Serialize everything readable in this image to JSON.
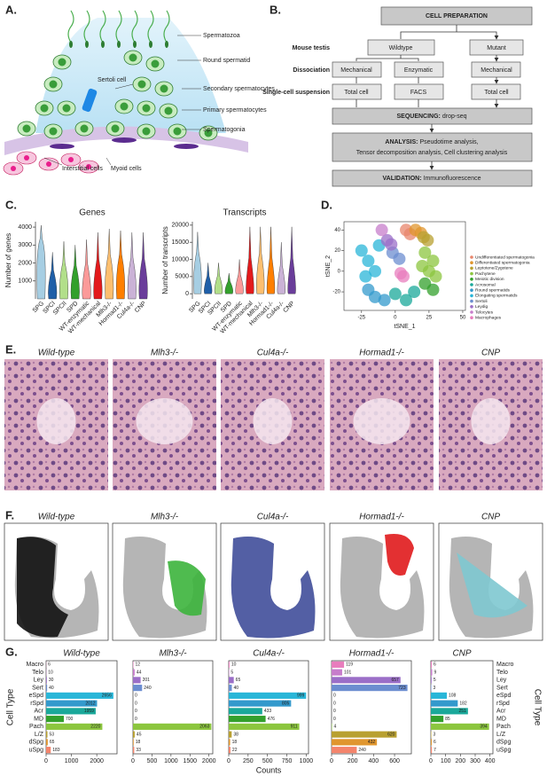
{
  "panel_a": {
    "letter": "A.",
    "labels": [
      "Spermatozoa",
      "Round spermatid",
      "Sertoli cell",
      "Secondary spermatocytes",
      "Primary spermatocytes",
      "Spermatogonia",
      "Interstitial cells",
      "Myoid cells"
    ]
  },
  "panel_b": {
    "letter": "B.",
    "title": "CELL PREPARATION",
    "row_labels": [
      "Mouse testis",
      "Dissociation",
      "Single-cell suspension"
    ],
    "boxes": [
      "Wildtype",
      "Mutant",
      "Mechanical",
      "Enzymatic",
      "Mechanical",
      "Total cell",
      "FACS",
      "Total cell"
    ],
    "sequencing": {
      "bold": "SEQUENCING:",
      "text": "drop-seq"
    },
    "analysis": {
      "bold": "ANALYSIS:",
      "lines": [
        "Pseudotime analysis,",
        "Tensor decomposition analysis, Cell clustering analysis"
      ]
    },
    "validation": {
      "bold": "VALIDATION:",
      "text": "Immunofluorescence"
    }
  },
  "panel_c": {
    "letter": "C.",
    "categories": [
      "SPG",
      "SPCI",
      "SPCII",
      "SPD",
      "WT-enzymatic",
      "WT-mechanical",
      "Mlh3-/-",
      "Hormad1-/-",
      "Cul4a-/-",
      "CNP"
    ],
    "colors": [
      "#a6cee3",
      "#1f5fa8",
      "#b2df8a",
      "#33a02c",
      "#fb9a99",
      "#e31a1c",
      "#fdbf6f",
      "#ff7f00",
      "#cab2d6",
      "#6a3d9a"
    ],
    "charts": [
      {
        "type": "violin",
        "title": "Genes",
        "y_label": "Number of genes",
        "ylim": [
          0,
          4300
        ],
        "yticks": [
          1000,
          2000,
          3000,
          4000
        ],
        "max": [
          4100,
          2600,
          3200,
          3000,
          3300,
          3700,
          3900,
          3800,
          3700,
          3700
        ],
        "median": [
          2600,
          600,
          900,
          700,
          600,
          700,
          1100,
          1200,
          900,
          800
        ]
      },
      {
        "type": "violin",
        "title": "Transcripts",
        "y_label": "Number of transcripts",
        "ylim": [
          -1500,
          21000
        ],
        "yticks": [
          0,
          5000,
          10000,
          15000,
          20000
        ],
        "max": [
          18000,
          9000,
          9000,
          6000,
          10000,
          19500,
          19500,
          19500,
          15000,
          19500
        ],
        "median": [
          6500,
          1200,
          1500,
          1200,
          1300,
          1500,
          4000,
          1800,
          1400,
          1300
        ]
      }
    ]
  },
  "panel_d": {
    "letter": "D.",
    "type": "scatter",
    "x_label": "tSNE_1",
    "y_label": "tSNE_2",
    "xlim": [
      -38,
      52
    ],
    "ylim": [
      -38,
      48
    ],
    "xticks": [
      -25,
      0,
      25,
      50
    ],
    "yticks": [
      -20,
      0,
      20,
      40
    ],
    "series": [
      {
        "name": "Undifferentiated spermatogonia",
        "color": "#e8866c",
        "x": [
          8,
          11
        ],
        "y": [
          40,
          36
        ]
      },
      {
        "name": "Differentiated spermatogonia",
        "color": "#e0962e",
        "x": [
          15,
          19
        ],
        "y": [
          40,
          37
        ]
      },
      {
        "name": "Leptotene/Zygotene",
        "color": "#b8a030",
        "x": [
          21,
          24
        ],
        "y": [
          33,
          30
        ]
      },
      {
        "name": "Pachytene",
        "color": "#8cc63f",
        "x": [
          22,
          28,
          25,
          30,
          20
        ],
        "y": [
          18,
          10,
          0,
          -5,
          5
        ]
      },
      {
        "name": "Meiotic division",
        "color": "#33a02c",
        "x": [
          22,
          28
        ],
        "y": [
          -12,
          -18
        ]
      },
      {
        "name": "Acrosomal",
        "color": "#1aa89a",
        "x": [
          0,
          8,
          14
        ],
        "y": [
          -22,
          -28,
          -20
        ]
      },
      {
        "name": "Round spermatids",
        "color": "#3399cc",
        "x": [
          -15,
          -8,
          -20
        ],
        "y": [
          -25,
          -28,
          -18
        ]
      },
      {
        "name": "Elongating spermatids",
        "color": "#29b6d8",
        "x": [
          -25,
          -20,
          -15,
          -22,
          -12
        ],
        "y": [
          20,
          10,
          0,
          -5,
          25
        ]
      },
      {
        "name": "Sertoli",
        "color": "#6c8ed0",
        "x": [
          -2,
          3
        ],
        "y": [
          18,
          12
        ]
      },
      {
        "name": "Leydig",
        "color": "#9b6fc8",
        "x": [
          -6,
          -3
        ],
        "y": [
          30,
          26
        ]
      },
      {
        "name": "Telocytes",
        "color": "#c77dcb",
        "x": [
          -10
        ],
        "y": [
          40
        ]
      },
      {
        "name": "Macrophages",
        "color": "#e87dbd",
        "x": [
          4,
          6
        ],
        "y": [
          -2,
          -5
        ]
      }
    ]
  },
  "panel_e": {
    "letter": "E.",
    "titles": [
      "Wild-type",
      "Mlh3-/-",
      "Cul4a-/-",
      "Hormad1-/-",
      "CNP"
    ]
  },
  "panel_f": {
    "letter": "F.",
    "titles": [
      "Wild-type",
      "Mlh3-/-",
      "Cul4a-/-",
      "Hormad1-/-",
      "CNP"
    ],
    "colors": [
      "#111111",
      "#3cb43c",
      "#2a3a9c",
      "#e0191c",
      "#7ec8d0"
    ]
  },
  "panel_g": {
    "letter": "G.",
    "type": "bar",
    "y_label": "Cell Type",
    "x_label": "Counts",
    "categories": [
      "Macro",
      "Telo",
      "Ley",
      "Sert",
      "eSpd",
      "rSpd",
      "Acr",
      "MD",
      "Pach",
      "L/Z",
      "dSpg",
      "uSpg"
    ],
    "colors": [
      "#e87dbd",
      "#c77dcb",
      "#9b6fc8",
      "#6c8ed0",
      "#29b6d8",
      "#3399cc",
      "#1aa89a",
      "#33a02c",
      "#8cc63f",
      "#b8a030",
      "#e0962e",
      "#f4846c"
    ],
    "charts": [
      {
        "title": "Wild-type",
        "values": [
          6,
          10,
          30,
          40,
          2656,
          2012,
          1959,
          700,
          2220,
          53,
          65,
          183
        ],
        "xlim": [
          0,
          2800
        ],
        "xticks": [
          0,
          1000,
          2000
        ]
      },
      {
        "title": "Mlh3-/-",
        "values": [
          12,
          44,
          201,
          240,
          0,
          0,
          0,
          0,
          2063,
          45,
          18,
          33
        ],
        "xlim": [
          0,
          2100
        ],
        "xticks": [
          0,
          500,
          1000,
          1500,
          2000
        ]
      },
      {
        "title": "Cul4a-/-",
        "values": [
          10,
          5,
          65,
          40,
          999,
          805,
          433,
          476,
          911,
          38,
          18,
          22
        ],
        "xlim": [
          0,
          1030
        ],
        "xticks": [
          0,
          250,
          500,
          750,
          1000
        ]
      },
      {
        "title": "Hormad1-/-",
        "values": [
          119,
          101,
          657,
          723,
          0,
          0,
          0,
          0,
          4,
          620,
          432,
          240
        ],
        "xlim": [
          0,
          760
        ],
        "xticks": [
          0,
          200,
          400,
          600
        ]
      },
      {
        "title": "CNP",
        "values": [
          6,
          9,
          5,
          3,
          108,
          182,
          251,
          85,
          394,
          3,
          6,
          7
        ],
        "xlim": [
          0,
          420
        ],
        "xticks": [
          0,
          100,
          200,
          300,
          400
        ]
      }
    ]
  }
}
